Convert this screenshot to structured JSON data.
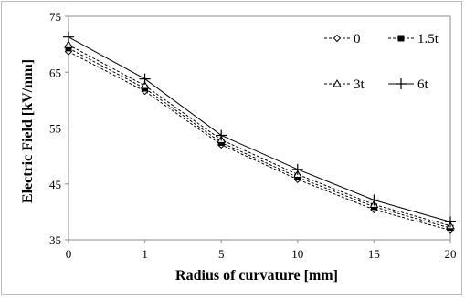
{
  "chart_data": {
    "type": "line",
    "categories": [
      "0",
      "1",
      "5",
      "10",
      "15",
      "20"
    ],
    "xlabel": "Radius of curvature [mm]",
    "ylabel": "Electric Field [kV/mm]",
    "ylim": [
      35,
      75
    ],
    "yticks": [
      35,
      45,
      55,
      65,
      75
    ],
    "grid": false,
    "legend_position": "top-right",
    "series": [
      {
        "name": "0",
        "marker": "diamond-open",
        "dash": "dashed",
        "values": [
          68.7,
          61.6,
          52.0,
          45.8,
          40.4,
          36.7
        ]
      },
      {
        "name": "1.5t",
        "marker": "square-filled",
        "dash": "dashed",
        "values": [
          69.3,
          62.1,
          52.4,
          46.2,
          40.9,
          37.1
        ]
      },
      {
        "name": "3t",
        "marker": "triangle-open",
        "dash": "dashed",
        "values": [
          69.9,
          62.6,
          52.9,
          46.7,
          41.3,
          37.5
        ]
      },
      {
        "name": "6t",
        "marker": "plus",
        "dash": "solid",
        "values": [
          71.3,
          63.8,
          53.7,
          47.6,
          42.1,
          38.2
        ]
      }
    ]
  }
}
